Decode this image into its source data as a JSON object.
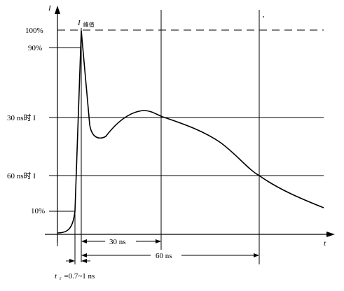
{
  "axes": {
    "x_label": "t",
    "y_label": "I"
  },
  "y_levels": [
    {
      "key": "l100",
      "label": "100%"
    },
    {
      "key": "l90",
      "label": "90%"
    },
    {
      "key": "l30ns",
      "label": "30 ns时 I"
    },
    {
      "key": "l60ns",
      "label": "60 ns时 I"
    },
    {
      "key": "l10",
      "label": "10%"
    }
  ],
  "annotations": {
    "peak_label_main": "I",
    "peak_label_sub": "峰值",
    "interval_30": "30 ns",
    "interval_60": "60 ns",
    "rise_time_label": "t",
    "rise_time_sub": "r",
    "rise_time_value": "=0.7~1 ns"
  },
  "colors": {
    "line": "#000000",
    "background": "#ffffff"
  }
}
